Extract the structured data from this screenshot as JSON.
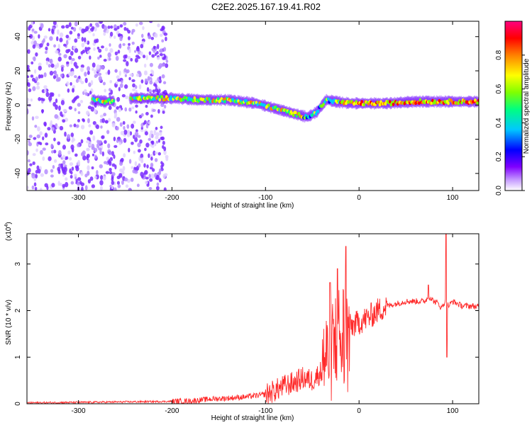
{
  "title": "C2E2.2025.167.19.41.R02",
  "chart_data": [
    {
      "type": "heatmap",
      "xlabel": "Height of straight line (km)",
      "ylabel": "Frequency (Hz)",
      "xlim": [
        -355,
        128
      ],
      "ylim": [
        -50,
        49
      ],
      "xticks": [
        -300,
        -200,
        -100,
        0,
        100
      ],
      "yticks": [
        -40,
        -20,
        0,
        20,
        40
      ],
      "colorbar": {
        "label": "Normalized spectral amplitude",
        "range": [
          0,
          1
        ],
        "ticks": [
          0.0,
          0.2,
          0.4,
          0.6,
          0.8
        ],
        "tick_labels": [
          "0.0",
          "0.2",
          "0.4",
          "0.6",
          "0.8"
        ],
        "colormap": [
          "#ffffff",
          "#c8a0ff",
          "#8000ff",
          "#0000ff",
          "#00c8ff",
          "#00ff80",
          "#80ff00",
          "#ffff00",
          "#ff8000",
          "#ff0000",
          "#ff0080"
        ]
      },
      "features": [
        {
          "name": "noise",
          "x_range": [
            -355,
            -205
          ],
          "freq_range": [
            -50,
            49
          ]
        },
        {
          "name": "signal track",
          "x": [
            -285,
            -270,
            -240,
            -200,
            -170,
            -140,
            -110,
            -90,
            -70,
            -55,
            -45,
            -35,
            -25,
            -10,
            0,
            30,
            60,
            90,
            128
          ],
          "freq": [
            3,
            2,
            4,
            4,
            3,
            3,
            1,
            -2,
            -5,
            -7,
            -4,
            3,
            2,
            1,
            1,
            1,
            2,
            2,
            2
          ]
        }
      ]
    },
    {
      "type": "line",
      "xlabel": "Height of straight line (km)",
      "ylabel": "SNR (10 * v/v)",
      "y_scale_label": "(x10",
      "y_scale_exp": "4",
      "xlim": [
        -355,
        128
      ],
      "ylim": [
        0,
        3.65
      ],
      "xticks": [
        -300,
        -200,
        -100,
        0,
        100
      ],
      "yticks": [
        0,
        1,
        2,
        3
      ],
      "series": [
        {
          "color": "#ff2a2a",
          "x": [
            -355,
            -300,
            -250,
            -200,
            -180,
            -160,
            -140,
            -120,
            -100,
            -90,
            -80,
            -70,
            -60,
            -50,
            -45,
            -40,
            -35,
            -30,
            -25,
            -20,
            -15,
            -10,
            -5,
            0,
            10,
            20,
            30,
            40,
            50,
            60,
            70,
            75,
            80,
            85,
            88,
            92,
            94,
            96,
            100,
            110,
            120,
            128
          ],
          "y": [
            0.02,
            0.03,
            0.04,
            0.05,
            0.06,
            0.1,
            0.12,
            0.15,
            0.2,
            0.28,
            0.38,
            0.45,
            0.55,
            0.5,
            0.6,
            0.7,
            0.8,
            1.1,
            1.4,
            1.5,
            1.6,
            1.65,
            1.7,
            1.75,
            1.85,
            2.0,
            2.1,
            2.15,
            2.2,
            2.2,
            2.2,
            2.3,
            2.2,
            2.15,
            2.05,
            2.2,
            2.15,
            2.1,
            2.2,
            2.1,
            2.1,
            2.08
          ],
          "spikes": [
            {
              "x": -31,
              "y": 2.6
            },
            {
              "x": -23,
              "y": 2.9
            },
            {
              "x": -14,
              "y": 3.38
            },
            {
              "x": 74,
              "y": 2.55
            },
            {
              "x": 93,
              "y": 3.65
            },
            {
              "x": 94,
              "y": 1.0
            }
          ]
        }
      ]
    }
  ]
}
